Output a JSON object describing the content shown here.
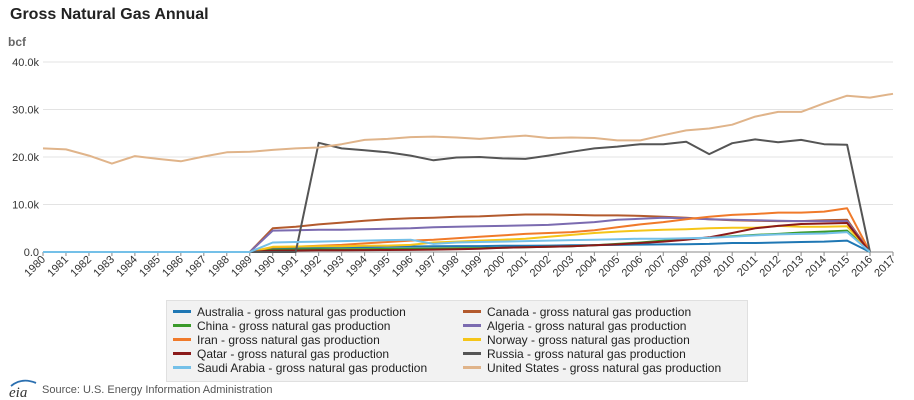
{
  "title": "Gross Natural Gas Annual",
  "source": "Source: U.S. Energy Information Administration",
  "logo_text": "eia",
  "chart_data": {
    "type": "line",
    "title": "Gross Natural Gas Annual",
    "ylabel": "bcf",
    "xlabel": "",
    "ylim": [
      0,
      40000
    ],
    "y_ticks": [
      0,
      10000,
      20000,
      30000,
      40000
    ],
    "y_tick_labels": [
      "0.0",
      "10.0k",
      "20.0k",
      "30.0k",
      "40.0k"
    ],
    "grid": "horizontal",
    "legend_position": "bottom",
    "x": [
      1980,
      1981,
      1982,
      1983,
      1984,
      1985,
      1986,
      1987,
      1988,
      1989,
      1990,
      1991,
      1992,
      1993,
      1994,
      1995,
      1996,
      1997,
      1998,
      1999,
      2000,
      2001,
      2002,
      2003,
      2004,
      2005,
      2006,
      2007,
      2008,
      2009,
      2010,
      2011,
      2012,
      2013,
      2014,
      2015,
      2016,
      2017
    ],
    "x_tick_labels": [
      "1980",
      "1981",
      "1982",
      "1983",
      "1984",
      "1985",
      "1986",
      "1987",
      "1988",
      "1989",
      "1990",
      "1991",
      "1992",
      "1993",
      "1994",
      "1995",
      "1996",
      "1997",
      "1998",
      "1999",
      "2000",
      "2001",
      "2002",
      "2003",
      "2004",
      "2005",
      "2006",
      "2007",
      "2008",
      "2009",
      "2010",
      "2011",
      "2012",
      "2013",
      "2014",
      "2015",
      "2016",
      "2017"
    ],
    "series": [
      {
        "name": "Australia - gross natural gas production",
        "color": "#1f77b4",
        "values": [
          0,
          0,
          0,
          0,
          0,
          0,
          0,
          0,
          0,
          0,
          800,
          900,
          950,
          1000,
          1050,
          1100,
          1150,
          1200,
          1250,
          1250,
          1300,
          1300,
          1350,
          1400,
          1450,
          1500,
          1550,
          1600,
          1650,
          1700,
          1900,
          1900,
          2000,
          2100,
          2200,
          2400,
          0,
          null
        ]
      },
      {
        "name": "Canada - gross natural gas production",
        "color": "#b35a2d",
        "values": [
          0,
          0,
          0,
          0,
          0,
          0,
          0,
          0,
          0,
          0,
          5000,
          5300,
          5800,
          6200,
          6600,
          6900,
          7100,
          7200,
          7400,
          7500,
          7700,
          7900,
          7900,
          7800,
          7700,
          7700,
          7600,
          7400,
          7200,
          6900,
          6700,
          6600,
          6500,
          6500,
          6700,
          6800,
          0,
          null
        ]
      },
      {
        "name": "China - gross natural gas production",
        "color": "#3a9a2a",
        "values": [
          0,
          0,
          0,
          0,
          0,
          0,
          0,
          0,
          0,
          0,
          500,
          550,
          580,
          600,
          620,
          650,
          700,
          740,
          780,
          830,
          900,
          1000,
          1100,
          1200,
          1400,
          1700,
          2000,
          2400,
          2800,
          3000,
          3300,
          3600,
          3800,
          4100,
          4300,
          4500,
          0,
          null
        ]
      },
      {
        "name": "Algeria - gross natural gas production",
        "color": "#7b6bb0",
        "values": [
          0,
          0,
          0,
          0,
          0,
          0,
          0,
          0,
          0,
          0,
          4500,
          4600,
          4700,
          4700,
          4800,
          4900,
          5000,
          5200,
          5300,
          5400,
          5500,
          5600,
          5700,
          6000,
          6300,
          6800,
          7000,
          7200,
          7100,
          6900,
          6800,
          6700,
          6600,
          6500,
          6500,
          6500,
          0,
          null
        ]
      },
      {
        "name": "Iran - gross natural gas production",
        "color": "#f07a2a",
        "values": [
          0,
          0,
          0,
          0,
          0,
          0,
          0,
          0,
          0,
          0,
          1000,
          1100,
          1300,
          1500,
          1800,
          2100,
          2400,
          2600,
          2900,
          3200,
          3500,
          3800,
          4000,
          4200,
          4600,
          5200,
          5800,
          6300,
          6900,
          7400,
          7800,
          8000,
          8300,
          8300,
          8500,
          9200,
          0,
          null
        ]
      },
      {
        "name": "Norway - gross natural gas production",
        "color": "#f5c518",
        "values": [
          0,
          0,
          0,
          0,
          0,
          0,
          0,
          0,
          0,
          0,
          1100,
          1150,
          1200,
          1200,
          1300,
          1350,
          1500,
          2000,
          2200,
          2400,
          2600,
          2800,
          3200,
          3600,
          4000,
          4300,
          4500,
          4700,
          4800,
          5000,
          5100,
          5100,
          5500,
          5300,
          5300,
          5400,
          0,
          null
        ]
      },
      {
        "name": "Qatar - gross natural gas production",
        "color": "#8b1a1a",
        "values": [
          0,
          0,
          0,
          0,
          0,
          0,
          0,
          0,
          0,
          0,
          300,
          320,
          350,
          380,
          400,
          420,
          450,
          500,
          600,
          700,
          900,
          1000,
          1100,
          1200,
          1400,
          1600,
          1900,
          2200,
          2600,
          3100,
          4000,
          5000,
          5500,
          5900,
          6000,
          6100,
          0,
          null
        ]
      },
      {
        "name": "Russia - gross natural gas production",
        "color": "#555555",
        "values": [
          0,
          0,
          0,
          0,
          0,
          0,
          0,
          0,
          0,
          0,
          0,
          0,
          23000,
          21800,
          21400,
          21000,
          20300,
          19300,
          19900,
          20000,
          19700,
          19600,
          20300,
          21100,
          21800,
          22200,
          22700,
          22700,
          23200,
          20600,
          22900,
          23700,
          23100,
          23600,
          22700,
          22600,
          0,
          null
        ]
      },
      {
        "name": "Saudi Arabia - gross natural gas production",
        "color": "#74c0e8",
        "values": [
          0,
          0,
          0,
          0,
          0,
          0,
          0,
          0,
          0,
          0,
          2000,
          2100,
          2200,
          2300,
          2400,
          2500,
          2600,
          1700,
          2000,
          2100,
          2200,
          2300,
          2400,
          2500,
          2600,
          2700,
          2800,
          2800,
          2900,
          3000,
          3200,
          3500,
          3700,
          3800,
          3900,
          4200,
          0,
          null
        ]
      },
      {
        "name": "United States - gross natural gas production",
        "color": "#e0b48a",
        "values": [
          21800,
          21600,
          20300,
          18600,
          20200,
          19600,
          19100,
          20100,
          21000,
          21100,
          21500,
          21800,
          22000,
          22700,
          23600,
          23800,
          24200,
          24300,
          24100,
          23800,
          24200,
          24500,
          24000,
          24100,
          24000,
          23500,
          23500,
          24600,
          25600,
          26000,
          26800,
          28500,
          29500,
          29500,
          31300,
          32900,
          32500,
          33300
        ]
      }
    ]
  }
}
